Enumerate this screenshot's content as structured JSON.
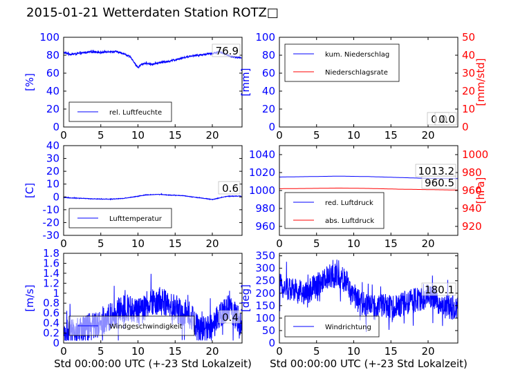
{
  "page_title": "2015-01-21 Wetterdaten Station ROTZ□",
  "colors": {
    "primary": "#0000ff",
    "secondary": "#ff0000",
    "axis": "#000000"
  },
  "chart_data": [
    {
      "id": "humidity",
      "type": "line",
      "xlim": [
        0,
        24
      ],
      "ylim": [
        0,
        100
      ],
      "xticks": [
        0,
        5,
        10,
        15,
        20
      ],
      "yticks": [
        0,
        20,
        40,
        60,
        80,
        100
      ],
      "xlabel": "",
      "ylabel": "[%]",
      "legend": {
        "placement": "lower-left",
        "entries": [
          {
            "label": "rel. Luftfeuchte",
            "color": "#0000ff"
          }
        ]
      },
      "value_label": "76.9",
      "series": [
        {
          "name": "rel. Luftfeuchte",
          "color": "#0000ff",
          "noise": 1.0,
          "x": [
            0,
            1,
            2,
            3,
            4,
            5,
            6,
            7,
            8,
            9,
            9.5,
            10,
            10.5,
            11,
            12,
            13,
            14,
            15,
            16,
            17,
            18,
            19,
            20,
            21,
            22,
            23,
            23.9
          ],
          "y": [
            83,
            81,
            82,
            83,
            84,
            83,
            84,
            84,
            82,
            78,
            72,
            66,
            70,
            71,
            70,
            72,
            73,
            75,
            77,
            79,
            80,
            81,
            82,
            84,
            80,
            78,
            77
          ]
        }
      ]
    },
    {
      "id": "precipitation",
      "type": "line",
      "xlim": [
        0,
        24
      ],
      "ylim": [
        0,
        100
      ],
      "y2lim": [
        0,
        50
      ],
      "xticks": [
        0,
        5,
        10,
        15,
        20
      ],
      "yticks": [
        0,
        20,
        40,
        60,
        80,
        100
      ],
      "y2ticks": [
        0,
        10,
        20,
        30,
        40,
        50
      ],
      "xlabel": "",
      "ylabel": "[mm]",
      "y2label": "[mm/std]",
      "legend": {
        "placement": "upper-left",
        "entries": [
          {
            "label": "kum. Niederschlag",
            "color": "#0000ff"
          },
          {
            "label": "Niederschlagsrate",
            "color": "#ff0000"
          }
        ]
      },
      "value_labels": [
        "0.0",
        "0.0"
      ],
      "series": [
        {
          "name": "kum. Niederschlag",
          "axis": "left",
          "color": "#0000ff",
          "x": [
            0,
            24
          ],
          "y": [
            0,
            0
          ]
        },
        {
          "name": "Niederschlagsrate",
          "axis": "right",
          "color": "#ff0000",
          "x": [
            0,
            24
          ],
          "y": [
            0,
            0
          ]
        }
      ]
    },
    {
      "id": "temperature",
      "type": "line",
      "xlim": [
        0,
        24
      ],
      "ylim": [
        -30,
        40
      ],
      "xticks": [
        0,
        5,
        10,
        15,
        20
      ],
      "yticks": [
        -30,
        -20,
        -10,
        0,
        10,
        20,
        30,
        40
      ],
      "xlabel": "",
      "ylabel": "[C]",
      "legend": {
        "placement": "lower-left",
        "entries": [
          {
            "label": "Lufttemperatur",
            "color": "#0000ff"
          }
        ]
      },
      "value_label": "0.6",
      "series": [
        {
          "name": "Lufttemperatur",
          "color": "#0000ff",
          "noise": 0.2,
          "x": [
            0,
            2,
            4,
            6,
            8,
            10,
            11,
            12,
            13,
            14,
            15,
            16,
            17,
            18,
            19,
            20,
            21,
            22,
            23,
            23.9
          ],
          "y": [
            -0.5,
            -1,
            -1.5,
            -1.8,
            -1.2,
            0.5,
            1.5,
            1.8,
            2,
            1.5,
            1.2,
            1,
            0.2,
            -0.5,
            -1.2,
            -2,
            -0.8,
            0.5,
            0.6,
            0.6
          ]
        }
      ]
    },
    {
      "id": "pressure",
      "type": "line",
      "xlim": [
        0,
        24
      ],
      "ylim": [
        950,
        1050
      ],
      "y2lim": [
        910,
        1010
      ],
      "xticks": [
        0,
        5,
        10,
        15,
        20
      ],
      "yticks": [
        960,
        980,
        1000,
        1020,
        1040
      ],
      "y2ticks": [
        920,
        940,
        960,
        980,
        1000
      ],
      "xlabel": "",
      "ylabel": "",
      "y2label": "[hPa]",
      "legend": {
        "placement": "lower-left",
        "entries": [
          {
            "label": "red. Luftdruck",
            "color": "#0000ff"
          },
          {
            "label": "abs. Luftdruck",
            "color": "#ff0000"
          }
        ]
      },
      "value_labels": [
        "1013.2",
        "960.5"
      ],
      "series": [
        {
          "name": "red. Luftdruck",
          "axis": "left",
          "color": "#0000ff",
          "x": [
            0,
            4,
            8,
            12,
            16,
            20,
            24
          ],
          "y": [
            1015,
            1015.5,
            1016,
            1015.5,
            1014.5,
            1013.5,
            1013.2
          ]
        },
        {
          "name": "abs. Luftdruck",
          "axis": "right",
          "color": "#ff0000",
          "x": [
            0,
            4,
            8,
            12,
            16,
            20,
            24
          ],
          "y": [
            962,
            962.3,
            962.7,
            962.3,
            961.5,
            961,
            960.5
          ]
        }
      ]
    },
    {
      "id": "wind_speed",
      "type": "line",
      "xlim": [
        0,
        24
      ],
      "ylim": [
        0,
        1.8
      ],
      "xticks": [
        0,
        5,
        10,
        15,
        20
      ],
      "yticks": [
        0,
        0.2,
        0.4,
        0.6,
        0.8,
        1.0,
        1.2,
        1.4,
        1.6,
        1.8
      ],
      "xlabel": "Std 00:00:00 UTC (+-23 Std Lokalzeit)",
      "ylabel": "[m/s]",
      "legend": {
        "placement": "lower-left",
        "entries": [
          {
            "label": "Windgeschwindigkeit",
            "color": "#0000ff"
          }
        ]
      },
      "value_label": "0.4",
      "series": [
        {
          "name": "Windgeschwindigkeit",
          "color": "#0000ff",
          "noise": 0.28,
          "x": [
            0,
            1,
            2,
            3,
            4,
            5,
            6,
            7,
            8,
            9,
            10,
            11,
            12,
            13,
            14,
            15,
            16,
            17,
            18,
            19,
            20,
            21,
            22,
            23,
            24
          ],
          "y": [
            0.2,
            0.2,
            0.25,
            0.3,
            0.35,
            0.4,
            0.5,
            0.6,
            0.7,
            0.7,
            0.6,
            0.75,
            0.8,
            0.85,
            0.75,
            0.7,
            0.6,
            0.55,
            0.3,
            0.25,
            0.3,
            0.55,
            0.75,
            0.55,
            0.4
          ]
        }
      ]
    },
    {
      "id": "wind_direction",
      "type": "line",
      "xlim": [
        0,
        24
      ],
      "ylim": [
        0,
        360
      ],
      "xticks": [
        0,
        5,
        10,
        15,
        20
      ],
      "yticks": [
        0,
        50,
        100,
        150,
        200,
        250,
        300,
        350
      ],
      "xlabel": "Std 00:00:00 UTC (+-23 Std Lokalzeit)",
      "ylabel": "[deg]",
      "legend": {
        "placement": "lower-left",
        "entries": [
          {
            "label": "Windrichtung",
            "color": "#0000ff"
          }
        ]
      },
      "value_label": "180.1",
      "series": [
        {
          "name": "Windrichtung",
          "color": "#0000ff",
          "noise": 50,
          "x": [
            0,
            1,
            2,
            3,
            4,
            5,
            6,
            7,
            8,
            9,
            10,
            11,
            12,
            13,
            14,
            15,
            16,
            17,
            18,
            19,
            20,
            21,
            22,
            23,
            24
          ],
          "y": [
            230,
            220,
            215,
            200,
            210,
            230,
            250,
            270,
            270,
            240,
            190,
            160,
            150,
            140,
            150,
            140,
            150,
            160,
            170,
            175,
            190,
            175,
            150,
            140,
            150
          ]
        }
      ]
    }
  ]
}
